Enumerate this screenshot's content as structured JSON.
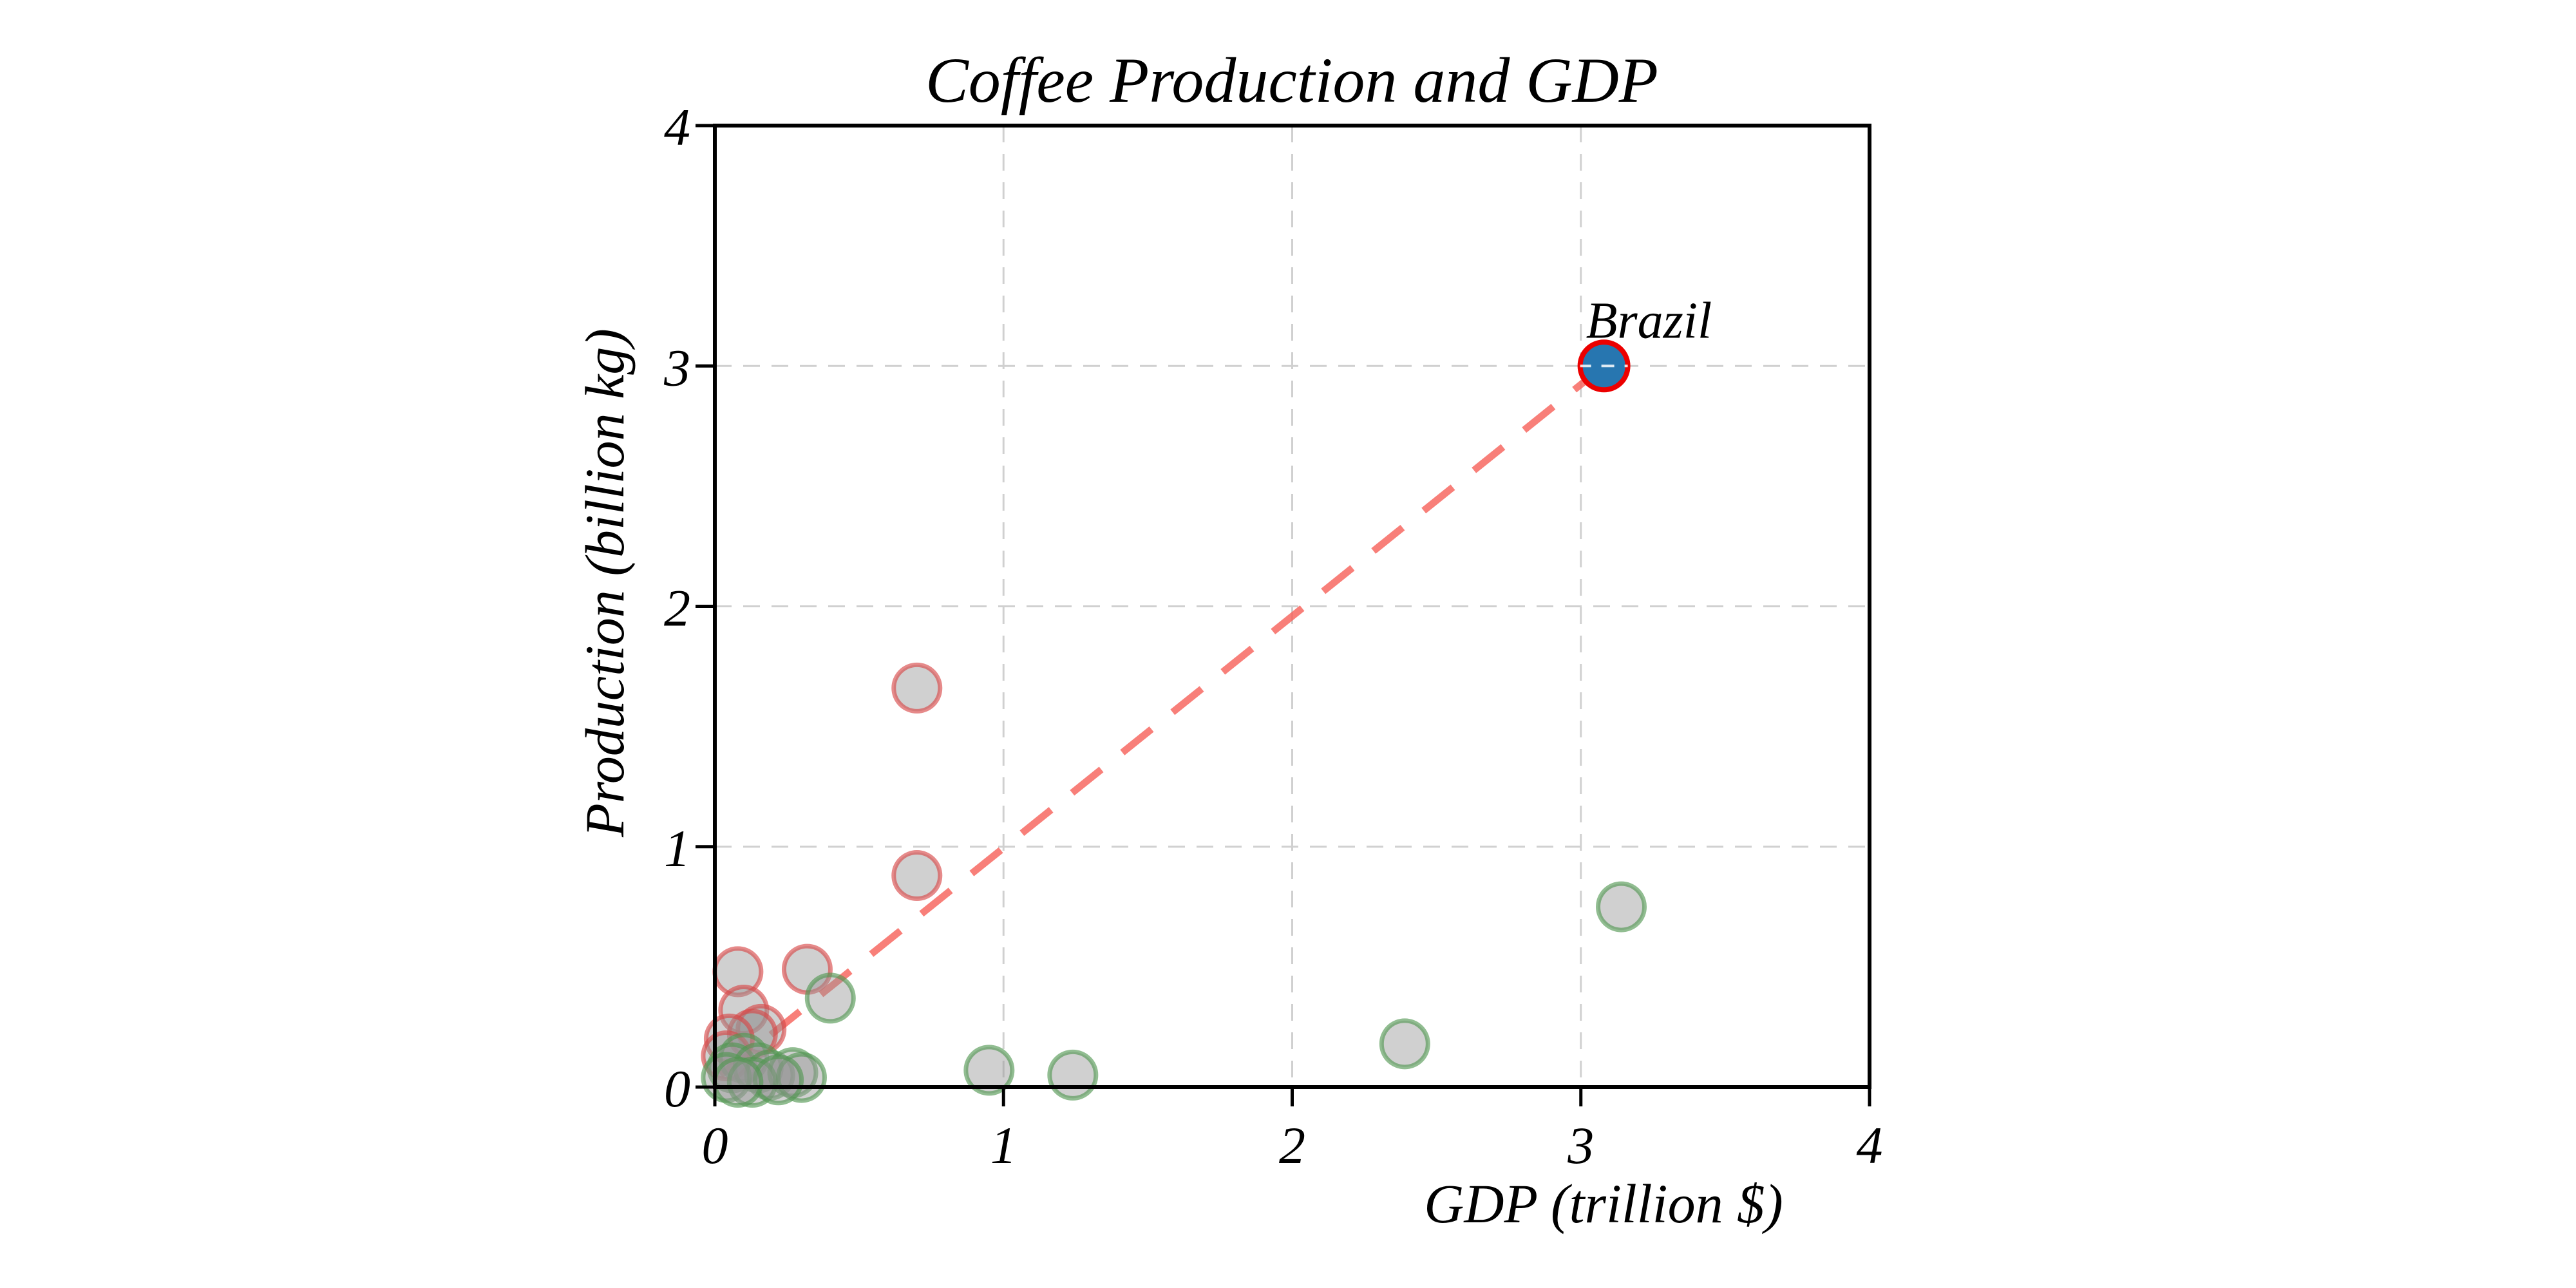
{
  "chart_data": {
    "type": "scatter",
    "title": "Coffee Production and GDP",
    "xlabel": "GDP (trillion $)",
    "ylabel": "Production (billion kg)",
    "xlim": [
      0,
      4
    ],
    "ylim": [
      0,
      4
    ],
    "xticks": [
      0,
      1,
      2,
      3,
      4
    ],
    "yticks": [
      0,
      1,
      2,
      3,
      4
    ],
    "grid": true,
    "grid_style": "dashed",
    "legend": "none",
    "marker": {
      "fill": "#969696",
      "fill_opacity": 0.45,
      "edge_opacity": 0.63,
      "radius_px": 36
    },
    "series": [
      {
        "name": "red-edged points",
        "edge_color": "#d74646",
        "points": [
          [
            0.7,
            1.66
          ],
          [
            0.7,
            0.88
          ],
          [
            0.32,
            0.49
          ],
          [
            0.08,
            0.48
          ],
          [
            0.1,
            0.32
          ],
          [
            0.16,
            0.24
          ],
          [
            0.13,
            0.22
          ],
          [
            0.05,
            0.2
          ],
          [
            0.04,
            0.13
          ]
        ]
      },
      {
        "name": "green-edged points",
        "edge_color": "#509650",
        "points": [
          [
            3.14,
            0.75
          ],
          [
            2.39,
            0.18
          ],
          [
            1.24,
            0.05
          ],
          [
            0.95,
            0.07
          ],
          [
            0.4,
            0.37
          ],
          [
            0.1,
            0.12
          ],
          [
            0.06,
            0.08
          ],
          [
            0.15,
            0.08
          ],
          [
            0.19,
            0.05
          ],
          [
            0.27,
            0.06
          ],
          [
            0.3,
            0.04
          ],
          [
            0.04,
            0.04
          ],
          [
            0.13,
            0.02
          ],
          [
            0.22,
            0.03
          ],
          [
            0.08,
            0.02
          ]
        ]
      }
    ],
    "highlight_point": {
      "label": "Brazil",
      "x": 3.08,
      "y": 3.0,
      "fill": "#2776b0",
      "edge_color": "#ec0000",
      "radius_px": 37
    },
    "annotation": {
      "text": "Brazil",
      "x": 3.08,
      "y": 3.0
    },
    "trendline": {
      "style": "dashed",
      "color": "#f65f58",
      "opacity": 0.8,
      "x1": 0.02,
      "y1": 0.05,
      "x2": 3.08,
      "y2": 3.0
    },
    "colors": {
      "background": "#ffffff",
      "spine": "#000000",
      "grid": "#d0d0d0",
      "text": "#000000"
    }
  }
}
